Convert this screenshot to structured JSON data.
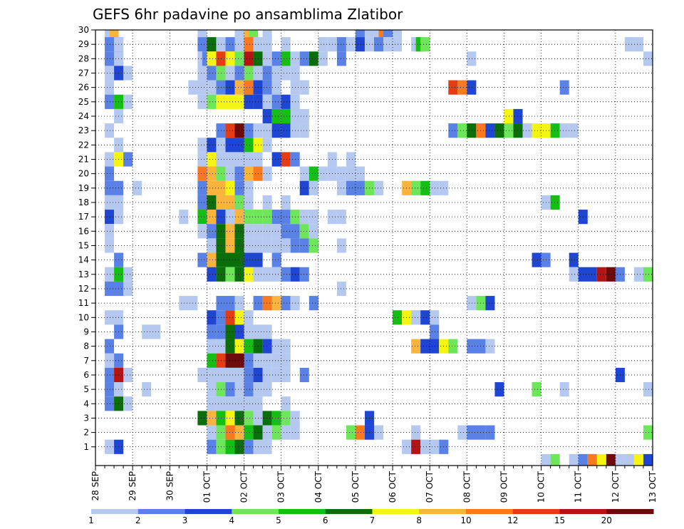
{
  "chart_data": {
    "type": "heatmap",
    "title": "GEFS 6hr padavine po ansamblima Zlatibor",
    "xlabel": "",
    "ylabel": "",
    "x_tick_labels": [
      "28 SEP",
      "29 SEP",
      "30 SEP",
      "01 OCT",
      "02 OCT",
      "03 OCT",
      "04 OCT",
      "05 OCT",
      "06 OCT",
      "07 OCT",
      "08 OCT",
      "09 OCT",
      "10 OCT",
      "11 OCT",
      "12 OCT",
      "13 OCT"
    ],
    "x_range_steps": [
      0,
      60
    ],
    "y_tick_labels": [
      "1",
      "2",
      "3",
      "4",
      "5",
      "6",
      "7",
      "8",
      "9",
      "10",
      "11",
      "12",
      "13",
      "14",
      "15",
      "16",
      "17",
      "18",
      "19",
      "20",
      "21",
      "22",
      "23",
      "24",
      "25",
      "26",
      "27",
      "28",
      "29",
      "30"
    ],
    "y_range": [
      0,
      30
    ],
    "grid": true,
    "colorbar": {
      "labels": [
        "1",
        "2",
        "3",
        "4",
        "5",
        "6",
        "7",
        "8",
        "10",
        "12",
        "15",
        "20"
      ],
      "colors": [
        "#b4c8f0",
        "#5a82e6",
        "#1e46d2",
        "#6ee65a",
        "#14be14",
        "#0a6e0a",
        "#f5f514",
        "#fab43c",
        "#fa781e",
        "#e63c14",
        "#b41414",
        "#6e0a0a"
      ]
    },
    "cells": [
      [
        30,
        "1:1:1 1.5:1:8 11:1:1 15:1:1 16:1:8 16.5:1:4 18:1:1 28:1:2 29:1:1 30:1:1 30.5:1:9 31:1:2 32:1:1"
      ],
      [
        29,
        "1:2:2 2:1:1 11:1:2 12:1:6 13:1:1 14:1:2 15:1:1 16:1:9 17:1:1 18:1:1 20:1:1 24:1:1 25:1:1 26:1:2 27:1:1 28:1:3 29:1:1 30:1:2 31:1:1 32:1:1 34:1:1 34.5:1:5 35:1:4 57:1:1 58:1:1"
      ],
      [
        28,
        "1:2:2 2:1:1 11:1:1 11.5:1:2 12:1:7 13:1:10 14:1:7 15:1:4 16:1:11 17:1:6 18:1:1 19:1:2 20:1:5 21:1:1 22:1:2 23:1:6 24:1:1 26:1:2 40:1:1 59:1:1"
      ],
      [
        27,
        "1:1:1 2:1:3 3:1:1 11:1:1 12:1:2 13:1:4 14:1:1 15:1:2 16:1:4 17:1:1 18:1:2 19:1:1 20:1:1 21:1:1"
      ],
      [
        26,
        "1:1:1 10:2:1 12:1:1 13:1:2 14:1:3 15:1:8 16:1:9 17:1:3 18:1:2 19:1:1 21:1:1 22:1:1 38:1:10 39:1:9 40:1:3 50:1:2"
      ],
      [
        25,
        "1:1:2 2:1:5 3:1:1 11:1:1 12:1:4 13:1:7 14:1:7 15:1:7 16:1:3 17:1:3 18:1:1 19:1:2 20:1:3 21:1:1"
      ],
      [
        24,
        "2:1:1 18:1:3 19:1:5 20:2:5 21:1:1 22:1:1 44:1:7 45:1:3"
      ],
      [
        23,
        "1:1:1 13:1:2 14:1:10 15:1:12 16:1:2 17:1:1 18:1:1 19:1:3 20:1:3 21:1:1 22:1:1 38:1:2 39:1:4 40:1:6 41:1:9 42:1:3 43:1:6 44:1:4 45:1:6 46:1:1 47:1:7 48:1:7 49:1:5 50:1:1 51:1:1"
      ],
      [
        22,
        "2:1:1 11:1:1 12:1:3 13:1:1 14:1:3 15:1:3 16:1:5 17:1:7 18:1:1"
      ],
      [
        21,
        "1:1:1 2:1:7 3:1:2 11:1:1 12:1:7 13:1:1 14:1:1 15:1:1 16:1:1 17:1:1 19:1:3 20:1:10 21:1:2 25:1:1 27:1:1"
      ],
      [
        20,
        "1:1:2 11:1:9 12:1:8 13:1:4 14:1:1 15:1:2 16:1:8 17:1:9 18:1:1 22:1:1 23:1:5 24:1:1 25:1:1 26:1:1 27:1:1 28:1:1"
      ],
      [
        19,
        "1:2:2 4:1:1 11:1:2 12:2:8 14:1:7 15:1:2 16:1:1 22:1:3 23:1:1 26:1:1 27:1:2 28:1:2 29:1:4 30:1:1 33:1:8 34:1:4 35:1:5 36:1:1 37:1:1"
      ],
      [
        18,
        "1:2:1 11:1:2 12:1:6 13:1:8 14:1:8 15:1:4 16:1:1 18:1:1 20:1:1 48:1:1 49:1:5"
      ],
      [
        17,
        "1:1:3 2:1:1 9:1:1 11:1:5 12:1:8 13:1:3 14:1:1 15:1:8 16:1:4 17:1:4 18:1:4 19:2:2 21:1:4 22:1:1 23:1:1 25:1:1 26:1:1 52:1:3"
      ],
      [
        16,
        "1:1:1 11:1:1 12:1:2 13:1:6 14:1:8 15:1:6 16:1:1 17:1:1 18:1:1 19:1:1 20:2:2 22:1:4 23:1:1"
      ],
      [
        15,
        "1:1:1 12:1:1 13:1:6 14:1:8 15:1:6 16:1:1 17:1:1 18:1:1 19:1:1 20:1:1 21:1:2 22:1:2 23:1:4 26:1:1"
      ],
      [
        14,
        "2:1:2 11:1:2 12:1:8 13:2:6 15:1:6 16:2:3 19:1:2 47:1:3 48:1:2 51:1:3"
      ],
      [
        13,
        "1:1:1 2:1:5 3:1:1 12:1:3 13:1:6 14:1:4 15:1:6 16:1:7 17:1:1 18:1:1 19:1:1 20:1:2 21:1:3 22:1:2 51:1:1 52:2:3 54:1:11 55:1:12 56:1:2 58:1:1 59:1:4"
      ],
      [
        12,
        "1:2:2 3:1:1 26:1:1"
      ],
      [
        11,
        "9:2:1 13:2:2 15:1:1 17:1:2 18:1:9 19:1:8 20:1:2 21:1:1 23:1:2 40:1:1 41:1:4 42:1:3"
      ],
      [
        10,
        "1:2:1 12:1:3 13:1:2 14:1:10 15:1:7 16:1:1 32:1:5 33:1:7 34:1:1 35:1:3 36:1:1"
      ],
      [
        9,
        "2:1:2 5:2:1 12:1:2 13:1:2 14:1:6 15:1:3 16:3:1 36:1:2"
      ],
      [
        8,
        "1:1:2 12:1:1 13:1:1 14:1:6 15:1:7 16:1:5 17:1:6 18:1:3 19:1:1 20:1:1 34:1:8 35:2:3 37:1:7 38:1:4 40:2:2 42:1:1"
      ],
      [
        7,
        "1:1:1 2:1:2 12:1:5 13:1:10 14:2:12 16:1:2 17:1:1 18:1:1 19:1:1 20:1:1"
      ],
      [
        6,
        "1:1:2 2:1:11 3:1:1 11:4:1 15:1:1 16:1:2 17:1:3 18:1:1 19:1:1 20:1:1 22:1:2 56:1:3"
      ],
      [
        5,
        "1:1:2 2:1:1 5:1:1 12:1:1 13:1:4 14:1:2 15:1:1 16:1:2 17:1:1 18:1:1 43:1:3 47:1:4 50:1:1 59:1:1"
      ],
      [
        4,
        "1:1:2 2:1:6 3:1:1 12:1:1 13:5:1 20:1:1"
      ],
      [
        3,
        "11:1:6 12:1:8 13:1:5 14:1:7 15:1:6 16:1:4 17:1:1 18:1:6 19:1:5 20:1:4 21:1:1 29:1:3"
      ],
      [
        2,
        "12:1:1 13:1:4 14:1:9 15:1:8 16:1:5 17:1:6 18:1:1 19:1:4 20:1:1 21:1:1 27:1:4 28:1:9 29:1:3 30:1:1 34:1:1 39:1:1 40:2:2 42:1:2 59:1:4"
      ],
      [
        1,
        "1:1:1 2:1:3 12:1:2 13:1:4 14:1:5 15:1:6 16:1:2 17:2:1 33:1:1 34:1:11 35:2:1 37:1:2"
      ],
      [
        0,
        "48:1:1 49:1:4 51:1:1 52:1:2 53:1:9 54:1:7 55:1:12 56:1:1 57:1:1 58:1:7 59:1:3 60:1:1"
      ]
    ]
  }
}
